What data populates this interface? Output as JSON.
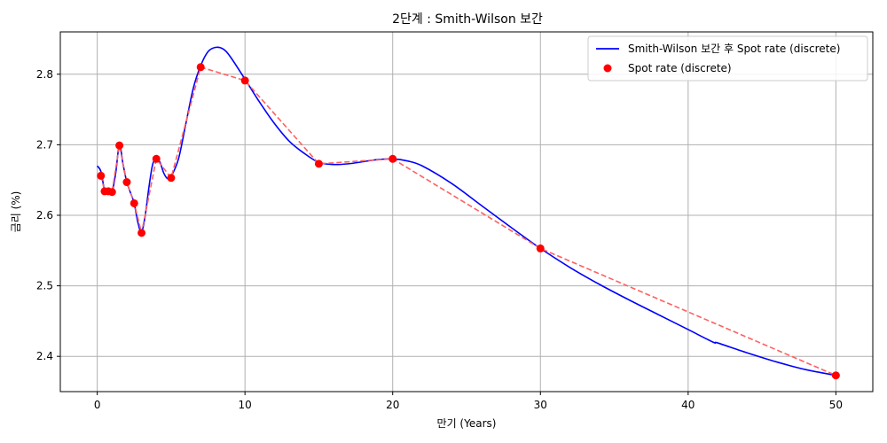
{
  "chart_data": {
    "type": "line",
    "title": "2단계 : Smith-Wilson 보간",
    "xlabel": "만기 (Years)",
    "ylabel": "금리 (%)",
    "xlim": [
      -2.5,
      52.5
    ],
    "ylim": [
      2.35,
      2.86
    ],
    "xticks": [
      0,
      10,
      20,
      30,
      40,
      50
    ],
    "yticks": [
      2.4,
      2.5,
      2.6,
      2.7,
      2.8
    ],
    "grid": true,
    "legend_position": "top-right",
    "series": [
      {
        "name": "Smith-Wilson 보간 후 Spot rate (discrete)",
        "kind": "line",
        "color": "#0000ff",
        "x": [
          0.0,
          0.25,
          0.5,
          0.75,
          1.0,
          1.25,
          1.5,
          1.75,
          2.0,
          2.25,
          2.5,
          2.75,
          3.0,
          3.25,
          3.5,
          3.75,
          4.0,
          4.25,
          4.5,
          4.75,
          5.0,
          5.5,
          6.0,
          6.5,
          7.0,
          7.5,
          8.0,
          8.5,
          9.0,
          10.0,
          11.0,
          12.0,
          13.0,
          14.0,
          15.0,
          16.0,
          17.0,
          18.0,
          19.0,
          20.0,
          21.0,
          22.0,
          24.0,
          26.0,
          28.0,
          30.0,
          32.0,
          34.0,
          36.0,
          38.0,
          40.0,
          41.7,
          42.0,
          44.0,
          46.0,
          48.0,
          50.0
        ],
        "y": [
          2.67,
          2.662,
          2.635,
          2.632,
          2.633,
          2.66,
          2.7,
          2.672,
          2.647,
          2.632,
          2.617,
          2.59,
          2.576,
          2.6,
          2.64,
          2.672,
          2.68,
          2.675,
          2.66,
          2.652,
          2.655,
          2.68,
          2.73,
          2.78,
          2.812,
          2.832,
          2.838,
          2.836,
          2.825,
          2.793,
          2.76,
          2.73,
          2.705,
          2.688,
          2.675,
          2.672,
          2.673,
          2.676,
          2.679,
          2.68,
          2.677,
          2.67,
          2.645,
          2.614,
          2.583,
          2.553,
          2.526,
          2.502,
          2.48,
          2.459,
          2.438,
          2.42,
          2.419,
          2.405,
          2.392,
          2.381,
          2.373
        ]
      },
      {
        "name": "",
        "kind": "dashed-line",
        "color": "#ff6060",
        "x": [
          0.25,
          0.5,
          0.75,
          1.0,
          1.5,
          2.0,
          2.5,
          3.0,
          4.0,
          5.0,
          7.0,
          10.0,
          15.0,
          20.0,
          30.0,
          50.0
        ],
        "y": [
          2.656,
          2.634,
          2.634,
          2.633,
          2.699,
          2.647,
          2.617,
          2.575,
          2.68,
          2.653,
          2.81,
          2.791,
          2.673,
          2.68,
          2.553,
          2.373
        ]
      },
      {
        "name": "Spot rate (discrete)",
        "kind": "scatter",
        "color": "#ff0000",
        "x": [
          0.25,
          0.5,
          0.75,
          1.0,
          1.5,
          2.0,
          2.5,
          3.0,
          4.0,
          5.0,
          7.0,
          10.0,
          15.0,
          20.0,
          30.0,
          50.0
        ],
        "y": [
          2.656,
          2.634,
          2.634,
          2.633,
          2.699,
          2.647,
          2.617,
          2.575,
          2.68,
          2.653,
          2.81,
          2.791,
          2.673,
          2.68,
          2.553,
          2.373
        ]
      }
    ]
  }
}
